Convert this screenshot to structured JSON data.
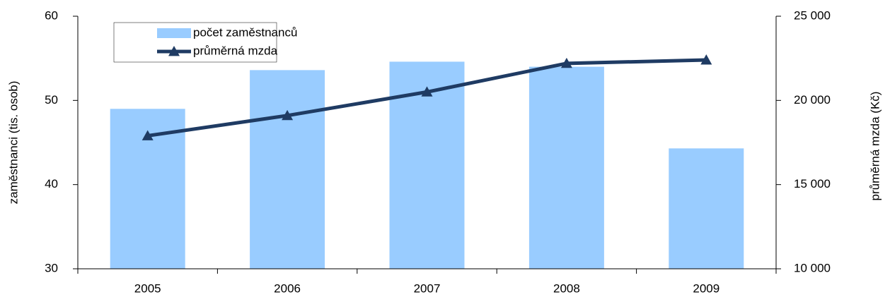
{
  "chart_data": {
    "type": "bar",
    "categories": [
      "2005",
      "2006",
      "2007",
      "2008",
      "2009"
    ],
    "series": [
      {
        "name": "počet zaměstnanců",
        "type": "bar",
        "color": "#99ccff",
        "values": [
          49,
          53.6,
          54.6,
          54,
          44.3
        ]
      },
      {
        "name": "průměrná mzda",
        "type": "line",
        "axis": "y2",
        "color": "#1f3b63",
        "values": [
          17900,
          19100,
          20500,
          22200,
          22400
        ]
      }
    ],
    "ylabel": "zaměstnanci (tis. osob)",
    "y2label": "průměrná mzda (Kč)",
    "ylim": [
      30,
      60
    ],
    "yticks": [
      30,
      40,
      50,
      60
    ],
    "y2lim": [
      10000,
      25000
    ],
    "y2ticks": [
      {
        "value": 10000,
        "label": "10 000"
      },
      {
        "value": 15000,
        "label": "15 000"
      },
      {
        "value": 20000,
        "label": "20 000"
      },
      {
        "value": 25000,
        "label": "25 000"
      }
    ],
    "grid": false,
    "legend": "upper left"
  }
}
